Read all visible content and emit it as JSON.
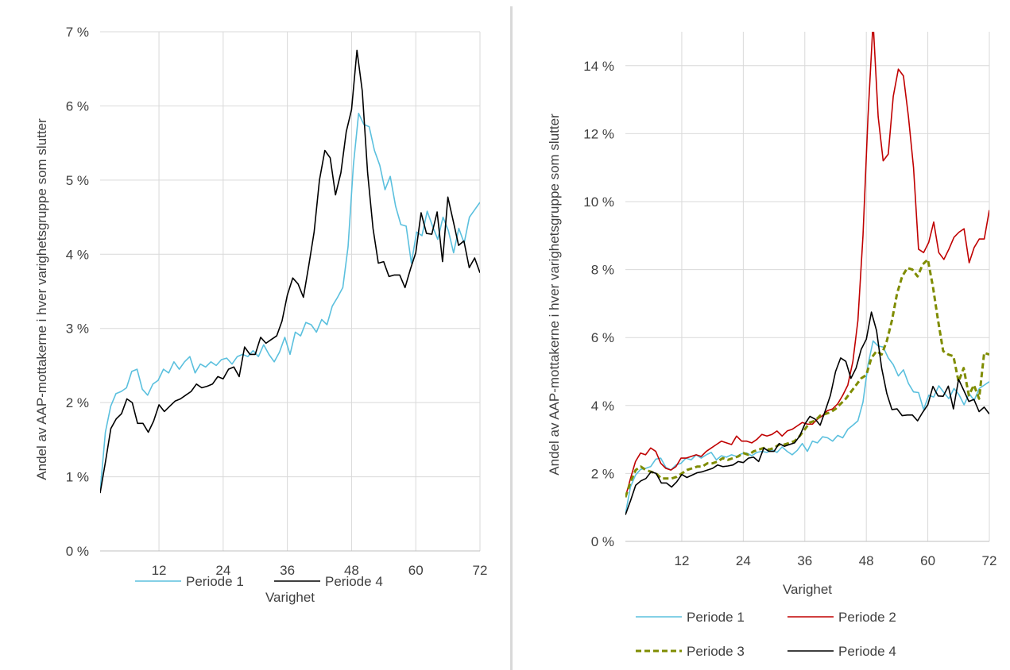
{
  "chart_data": [
    {
      "type": "line",
      "ylabel": "Andel av AAP-mottakerne i hver varighetsgruppe som slutter",
      "xlabel": "Varighet",
      "x_ticks": [
        12,
        24,
        36,
        48,
        60,
        72
      ],
      "x_range": [
        1,
        72
      ],
      "ylim": [
        0,
        7
      ],
      "y_ticks": [
        "0 %",
        "1 %",
        "2 %",
        "3 %",
        "4 %",
        "5 %",
        "6 %",
        "7 %"
      ],
      "y_tick_values": [
        0,
        1,
        2,
        3,
        4,
        5,
        6,
        7
      ],
      "grid": true,
      "legend_position": "bottom",
      "series": [
        {
          "name": "Periode 1",
          "color": "#5bc0de",
          "dash": "solid",
          "values": [
            0.8,
            1.6,
            1.95,
            2.12,
            2.15,
            2.2,
            2.42,
            2.45,
            2.18,
            2.1,
            2.25,
            2.3,
            2.45,
            2.4,
            2.55,
            2.45,
            2.55,
            2.62,
            2.4,
            2.52,
            2.48,
            2.55,
            2.5,
            2.58,
            2.6,
            2.52,
            2.62,
            2.65,
            2.62,
            2.7,
            2.62,
            2.78,
            2.65,
            2.55,
            2.68,
            2.88,
            2.65,
            2.95,
            2.9,
            3.08,
            3.05,
            2.95,
            3.12,
            3.05,
            3.3,
            3.42,
            3.55,
            4.1,
            5.2,
            5.9,
            5.75,
            5.72,
            5.4,
            5.2,
            4.87,
            5.05,
            4.65,
            4.4,
            4.38,
            3.88,
            4.3,
            4.25,
            4.58,
            4.38,
            4.2,
            4.5,
            4.32,
            4.02,
            4.35,
            4.15,
            4.5,
            4.6,
            4.7
          ]
        },
        {
          "name": "Periode 4",
          "color": "#000000",
          "dash": "solid",
          "values": [
            0.78,
            1.2,
            1.65,
            1.78,
            1.85,
            2.05,
            2.0,
            1.72,
            1.72,
            1.6,
            1.75,
            1.97,
            1.88,
            1.95,
            2.02,
            2.05,
            2.1,
            2.15,
            2.25,
            2.2,
            2.22,
            2.25,
            2.35,
            2.32,
            2.45,
            2.48,
            2.35,
            2.75,
            2.65,
            2.65,
            2.88,
            2.8,
            2.85,
            2.9,
            3.1,
            3.45,
            3.68,
            3.6,
            3.42,
            3.85,
            4.3,
            5.0,
            5.4,
            5.3,
            4.8,
            5.1,
            5.65,
            5.95,
            6.75,
            6.2,
            5.1,
            4.35,
            3.88,
            3.9,
            3.7,
            3.72,
            3.72,
            3.55,
            3.8,
            4.02,
            4.56,
            4.28,
            4.27,
            4.57,
            3.9,
            4.77,
            4.45,
            4.12,
            4.18,
            3.82,
            3.95,
            3.75
          ]
        }
      ]
    },
    {
      "type": "line",
      "ylabel": "Andel av AAP-mottakerne i hver varighetsgruppe som slutter",
      "xlabel": "Varighet",
      "x_ticks": [
        12,
        24,
        36,
        48,
        60,
        72
      ],
      "x_range": [
        1,
        72
      ],
      "ylim": [
        0,
        15
      ],
      "y_ticks": [
        "0 %",
        "2 %",
        "4 %",
        "6 %",
        "8 %",
        "10 %",
        "12 %",
        "14 %"
      ],
      "y_tick_values": [
        0,
        2,
        4,
        6,
        8,
        10,
        12,
        14
      ],
      "grid": true,
      "legend_position": "bottom",
      "series": [
        {
          "name": "Periode 1",
          "color": "#5bc0de",
          "dash": "solid",
          "values": [
            0.8,
            1.6,
            1.95,
            2.12,
            2.15,
            2.2,
            2.42,
            2.45,
            2.18,
            2.1,
            2.25,
            2.3,
            2.45,
            2.4,
            2.55,
            2.45,
            2.55,
            2.62,
            2.4,
            2.52,
            2.48,
            2.55,
            2.5,
            2.58,
            2.6,
            2.52,
            2.62,
            2.65,
            2.62,
            2.7,
            2.62,
            2.78,
            2.65,
            2.55,
            2.68,
            2.88,
            2.65,
            2.95,
            2.9,
            3.08,
            3.05,
            2.95,
            3.12,
            3.05,
            3.3,
            3.42,
            3.55,
            4.1,
            5.2,
            5.9,
            5.75,
            5.72,
            5.4,
            5.2,
            4.87,
            5.05,
            4.65,
            4.4,
            4.38,
            3.88,
            4.3,
            4.25,
            4.58,
            4.38,
            4.2,
            4.5,
            4.32,
            4.02,
            4.35,
            4.15,
            4.5,
            4.6,
            4.7
          ]
        },
        {
          "name": "Periode 2",
          "color": "#c00000",
          "dash": "solid",
          "values": [
            1.3,
            1.85,
            2.35,
            2.6,
            2.55,
            2.75,
            2.65,
            2.3,
            2.15,
            2.1,
            2.2,
            2.45,
            2.45,
            2.5,
            2.55,
            2.5,
            2.65,
            2.75,
            2.85,
            2.95,
            2.9,
            2.85,
            3.1,
            2.95,
            2.95,
            2.9,
            3.0,
            3.15,
            3.1,
            3.15,
            3.25,
            3.1,
            3.25,
            3.3,
            3.4,
            3.5,
            3.45,
            3.45,
            3.6,
            3.7,
            3.85,
            3.9,
            4.05,
            4.3,
            4.6,
            5.3,
            6.5,
            9.0,
            12.5,
            15.3,
            12.5,
            11.2,
            11.4,
            13.1,
            13.9,
            13.7,
            12.5,
            11.0,
            8.6,
            8.5,
            8.8,
            9.4,
            8.5,
            8.3,
            8.6,
            8.95,
            9.1,
            9.2,
            8.2,
            8.65,
            8.9,
            8.9,
            9.75
          ]
        },
        {
          "name": "Periode 3",
          "color": "#7f8c00",
          "dash": "dashed",
          "values": [
            1.3,
            1.75,
            2.1,
            2.2,
            2.1,
            2.05,
            2.0,
            1.85,
            1.85,
            1.85,
            1.9,
            2.0,
            2.1,
            2.15,
            2.2,
            2.2,
            2.3,
            2.3,
            2.35,
            2.45,
            2.4,
            2.45,
            2.5,
            2.6,
            2.55,
            2.65,
            2.7,
            2.75,
            2.7,
            2.75,
            2.85,
            2.85,
            2.9,
            2.95,
            3.1,
            3.3,
            3.5,
            3.55,
            3.7,
            3.75,
            3.8,
            3.9,
            4.05,
            4.2,
            4.4,
            4.6,
            4.8,
            4.9,
            5.4,
            5.6,
            5.5,
            5.9,
            6.5,
            7.3,
            7.8,
            8.05,
            8.0,
            7.8,
            8.15,
            8.3,
            7.5,
            6.5,
            5.6,
            5.5,
            5.45,
            4.7,
            5.1,
            4.3,
            4.6,
            4.2,
            5.55,
            5.5
          ]
        },
        {
          "name": "Periode 4",
          "color": "#000000",
          "dash": "solid",
          "values": [
            0.78,
            1.2,
            1.65,
            1.78,
            1.85,
            2.05,
            2.0,
            1.72,
            1.72,
            1.6,
            1.75,
            1.97,
            1.88,
            1.95,
            2.02,
            2.05,
            2.1,
            2.15,
            2.25,
            2.2,
            2.22,
            2.25,
            2.35,
            2.32,
            2.45,
            2.48,
            2.35,
            2.75,
            2.65,
            2.65,
            2.88,
            2.8,
            2.85,
            2.9,
            3.1,
            3.45,
            3.68,
            3.6,
            3.42,
            3.85,
            4.3,
            5.0,
            5.4,
            5.3,
            4.8,
            5.1,
            5.65,
            5.95,
            6.75,
            6.2,
            5.1,
            4.35,
            3.88,
            3.9,
            3.7,
            3.72,
            3.72,
            3.55,
            3.8,
            4.02,
            4.56,
            4.28,
            4.27,
            4.57,
            3.9,
            4.77,
            4.45,
            4.12,
            4.18,
            3.82,
            3.95,
            3.75
          ]
        }
      ]
    }
  ]
}
